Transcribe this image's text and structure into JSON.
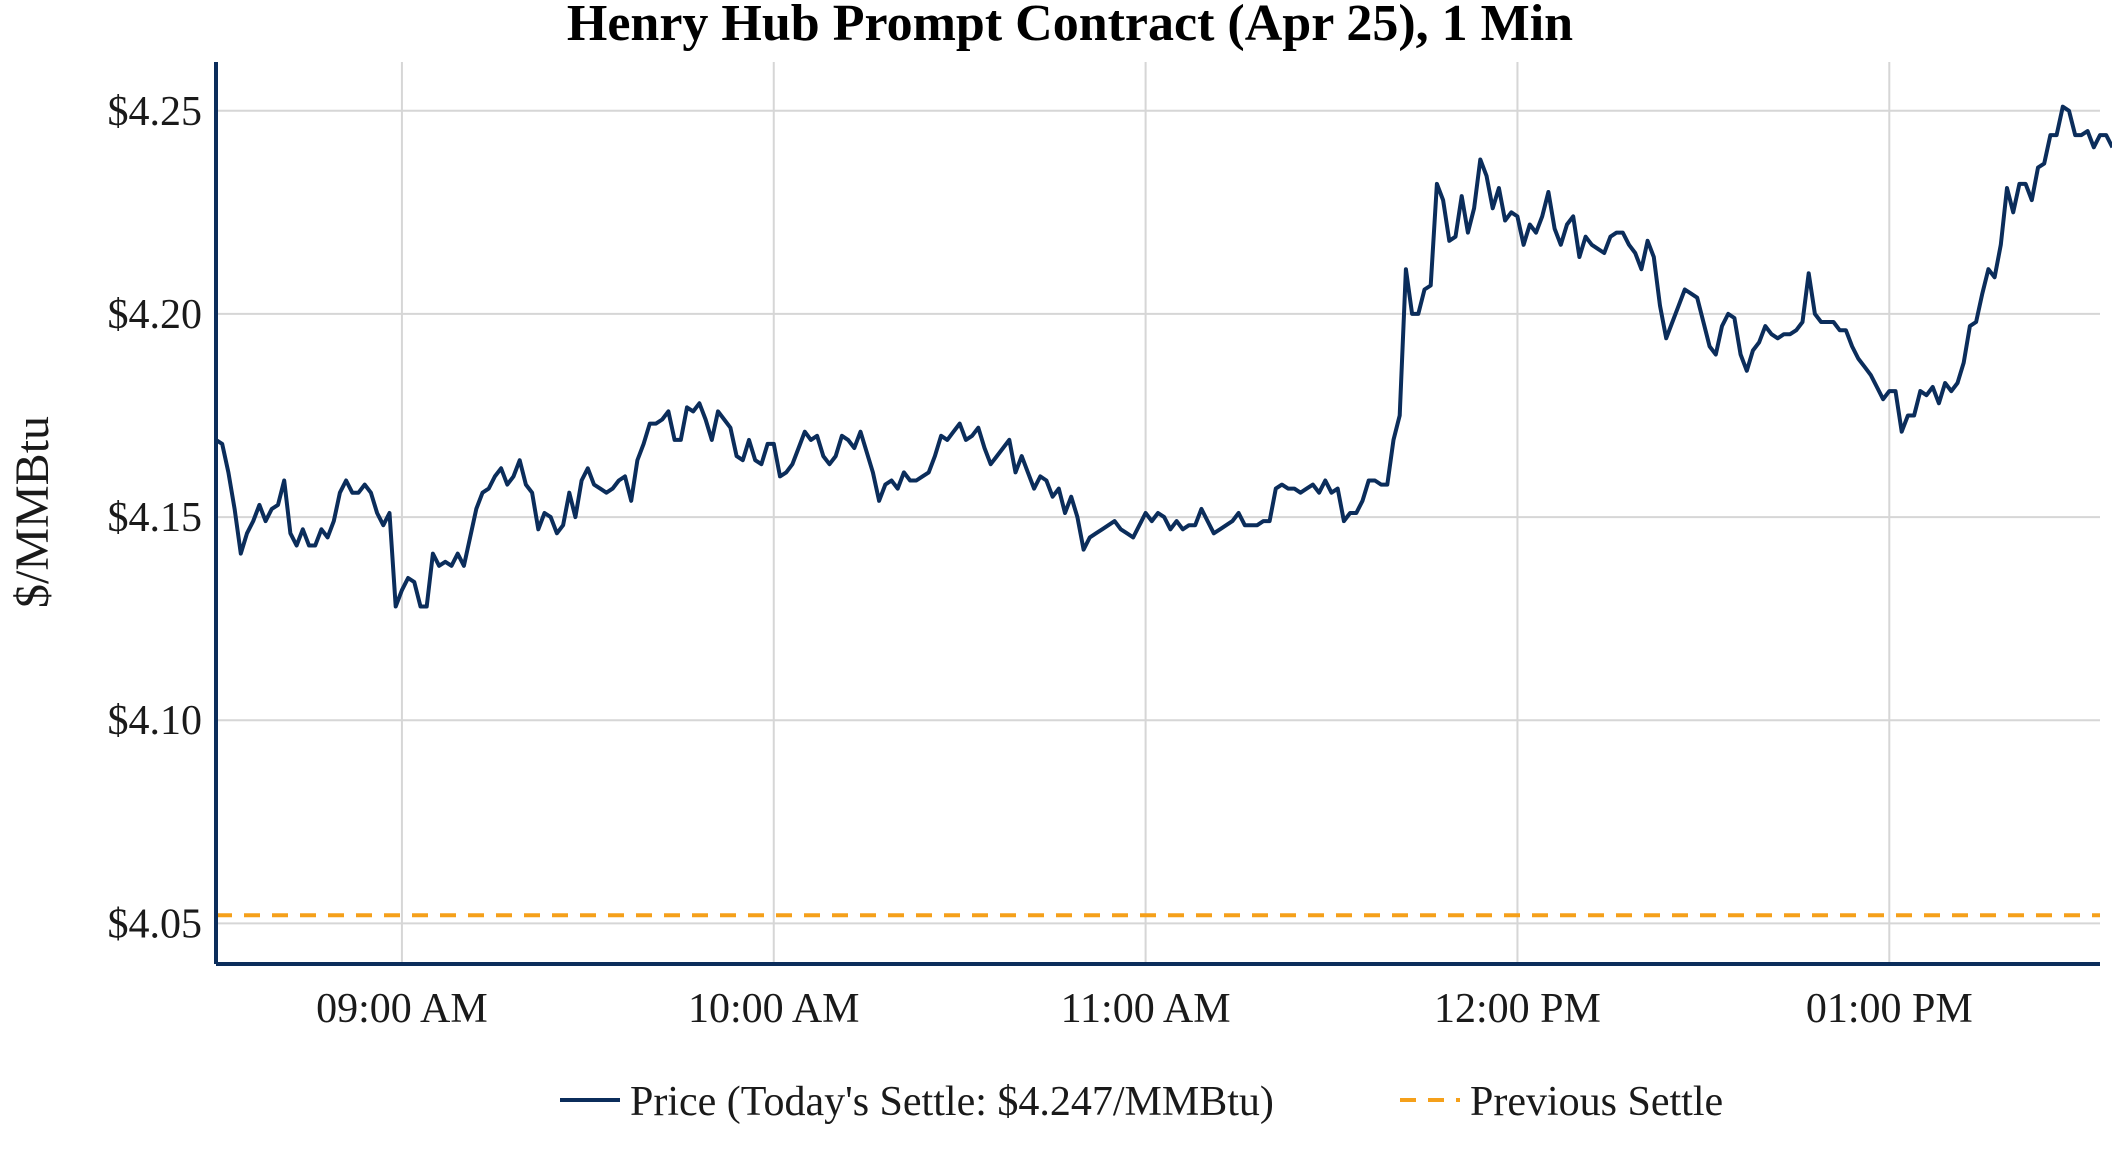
{
  "chart_data": {
    "type": "line",
    "title": "Henry Hub Prompt Contract (Apr 25), 1 Min",
    "xlabel": "",
    "ylabel": "$/MMBtu",
    "x_tick_labels": [
      "09:00 AM",
      "10:00 AM",
      "11:00 AM",
      "12:00 PM",
      "01:00 PM"
    ],
    "x_tick_times": [
      "09:00",
      "10:00",
      "11:00",
      "12:00",
      "13:00"
    ],
    "x_range": [
      "08:30",
      "13:34"
    ],
    "y_tick_labels": [
      "$4.05",
      "$4.10",
      "$4.15",
      "$4.20",
      "$4.25"
    ],
    "y_ticks": [
      4.05,
      4.1,
      4.15,
      4.2,
      4.25
    ],
    "ylim": [
      4.04,
      4.262
    ],
    "grid": true,
    "legend_position": "bottom-center",
    "colors": {
      "price": "#0b2d5b",
      "previous_settle": "#f5a01a",
      "axis": "#0b2d5b"
    },
    "series": [
      {
        "name": "Price (Today's Settle: $4.247/MMBtu)",
        "style": "solid",
        "x_start": "08:30",
        "x_step_minutes": 1,
        "values": [
          4.169,
          4.168,
          4.161,
          4.152,
          4.141,
          4.146,
          4.149,
          4.153,
          4.149,
          4.152,
          4.153,
          4.159,
          4.146,
          4.143,
          4.147,
          4.143,
          4.143,
          4.147,
          4.145,
          4.149,
          4.156,
          4.159,
          4.156,
          4.156,
          4.158,
          4.156,
          4.151,
          4.148,
          4.151,
          4.128,
          4.132,
          4.135,
          4.134,
          4.128,
          4.128,
          4.141,
          4.138,
          4.139,
          4.138,
          4.141,
          4.138,
          4.145,
          4.152,
          4.156,
          4.157,
          4.16,
          4.162,
          4.158,
          4.16,
          4.164,
          4.158,
          4.156,
          4.147,
          4.151,
          4.15,
          4.146,
          4.148,
          4.156,
          4.15,
          4.159,
          4.162,
          4.158,
          4.157,
          4.156,
          4.157,
          4.159,
          4.16,
          4.154,
          4.164,
          4.168,
          4.173,
          4.173,
          4.174,
          4.176,
          4.169,
          4.169,
          4.177,
          4.176,
          4.178,
          4.174,
          4.169,
          4.176,
          4.174,
          4.172,
          4.165,
          4.164,
          4.169,
          4.164,
          4.163,
          4.168,
          4.168,
          4.16,
          4.161,
          4.163,
          4.167,
          4.171,
          4.169,
          4.17,
          4.165,
          4.163,
          4.165,
          4.17,
          4.169,
          4.167,
          4.171,
          4.166,
          4.161,
          4.154,
          4.158,
          4.159,
          4.157,
          4.161,
          4.159,
          4.159,
          4.16,
          4.161,
          4.165,
          4.17,
          4.169,
          4.171,
          4.173,
          4.169,
          4.17,
          4.172,
          4.167,
          4.163,
          4.165,
          4.167,
          4.169,
          4.161,
          4.165,
          4.161,
          4.157,
          4.16,
          4.159,
          4.155,
          4.157,
          4.151,
          4.155,
          4.15,
          4.142,
          4.145,
          4.146,
          4.147,
          4.148,
          4.149,
          4.147,
          4.146,
          4.145,
          4.148,
          4.151,
          4.149,
          4.151,
          4.15,
          4.147,
          4.149,
          4.147,
          4.148,
          4.148,
          4.152,
          4.149,
          4.146,
          4.147,
          4.148,
          4.149,
          4.151,
          4.148,
          4.148,
          4.148,
          4.149,
          4.149,
          4.157,
          4.158,
          4.157,
          4.157,
          4.156,
          4.157,
          4.158,
          4.156,
          4.159,
          4.156,
          4.157,
          4.149,
          4.151,
          4.151,
          4.154,
          4.159,
          4.159,
          4.158,
          4.158,
          4.169,
          4.175,
          4.211,
          4.2,
          4.2,
          4.206,
          4.207,
          4.232,
          4.228,
          4.218,
          4.219,
          4.229,
          4.22,
          4.226,
          4.238,
          4.234,
          4.226,
          4.231,
          4.223,
          4.225,
          4.224,
          4.217,
          4.222,
          4.22,
          4.224,
          4.23,
          4.221,
          4.217,
          4.222,
          4.224,
          4.214,
          4.219,
          4.217,
          4.216,
          4.215,
          4.219,
          4.22,
          4.22,
          4.217,
          4.215,
          4.211,
          4.218,
          4.214,
          4.202,
          4.194,
          4.198,
          4.202,
          4.206,
          4.205,
          4.204,
          4.198,
          4.192,
          4.19,
          4.197,
          4.2,
          4.199,
          4.19,
          4.186,
          4.191,
          4.193,
          4.197,
          4.195,
          4.194,
          4.195,
          4.195,
          4.196,
          4.198,
          4.21,
          4.2,
          4.198,
          4.198,
          4.198,
          4.196,
          4.196,
          4.192,
          4.189,
          4.187,
          4.185,
          4.182,
          4.179,
          4.181,
          4.181,
          4.171,
          4.175,
          4.175,
          4.181,
          4.18,
          4.182,
          4.178,
          4.183,
          4.181,
          4.183,
          4.188,
          4.197,
          4.198,
          4.205,
          4.211,
          4.209,
          4.217,
          4.231,
          4.225,
          4.232,
          4.232,
          4.228,
          4.236,
          4.237,
          4.244,
          4.244,
          4.251,
          4.25,
          4.244,
          4.244,
          4.245,
          4.241,
          4.244,
          4.244,
          4.241
        ]
      },
      {
        "name": "Previous Settle",
        "style": "dashed",
        "constant": 4.052
      }
    ]
  }
}
